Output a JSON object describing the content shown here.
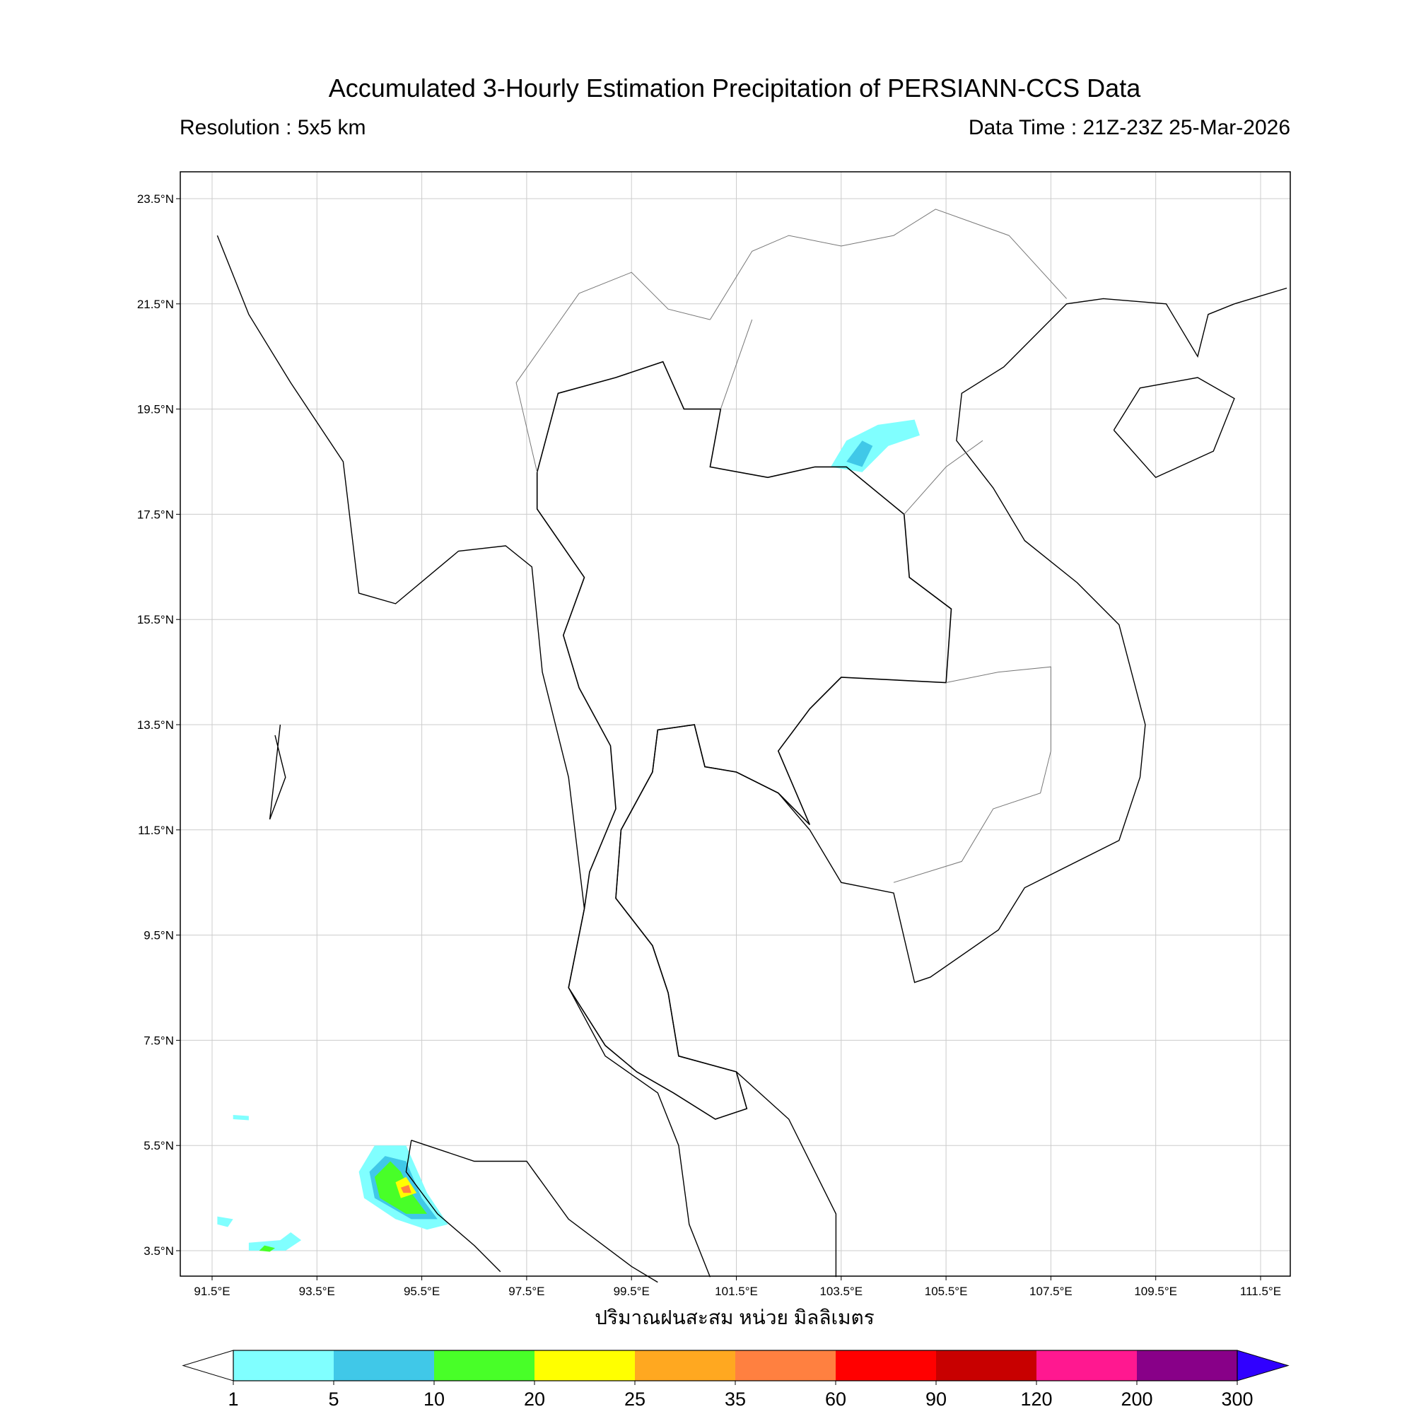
{
  "header": {
    "title": "Accumulated 3-Hourly Estimation Precipitation of PERSIANN-CCS Data",
    "resolution": "Resolution : 5x5 km",
    "data_time": "Data Time : 21Z-23Z 25-Mar-2026"
  },
  "map": {
    "lon_ticks": [
      "91.5°E",
      "93.5°E",
      "95.5°E",
      "97.5°E",
      "99.5°E",
      "101.5°E",
      "103.5°E",
      "105.5°E",
      "107.5°E",
      "109.5°E",
      "111.5°E"
    ],
    "lat_ticks": [
      "23.5°N",
      "21.5°N",
      "19.5°N",
      "17.5°N",
      "15.5°N",
      "13.5°N",
      "11.5°N",
      "9.5°N",
      "7.5°N",
      "5.5°N",
      "3.5°N"
    ],
    "xlabel": "ปริมาณฝนสะสม หน่วย มิลลิเมตร",
    "grid": true
  },
  "colorbar": {
    "levels": [
      "1",
      "5",
      "10",
      "20",
      "25",
      "35",
      "60",
      "90",
      "120",
      "200",
      "300"
    ],
    "colors": [
      "#80ffff",
      "#40c8e8",
      "#48ff28",
      "#ffff00",
      "#ffa820",
      "#ff8040",
      "#ff0000",
      "#c80000",
      "#ff1890",
      "#880088"
    ],
    "under_color": "#ffffff",
    "over_color": "#3000ff",
    "extend": "both"
  }
}
